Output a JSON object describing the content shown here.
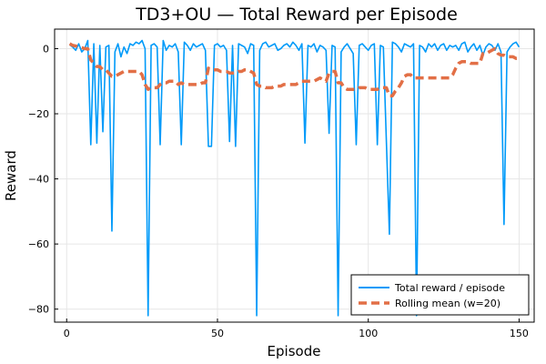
{
  "chart_data": {
    "type": "line",
    "title": "TD3+OU — Total Reward per Episode",
    "xlabel": "Episode",
    "ylabel": "Reward",
    "xlim": [
      -4,
      155
    ],
    "ylim": [
      -84,
      6
    ],
    "xticks": [
      0,
      50,
      100,
      150
    ],
    "yticks": [
      0,
      -20,
      -40,
      -60,
      -80
    ],
    "grid": true,
    "legend_position": "bottom-right",
    "series": [
      {
        "name": "Total reward / episode",
        "color": "#009af9",
        "style": "solid",
        "x": [
          1,
          2,
          3,
          4,
          5,
          6,
          7,
          8,
          9,
          10,
          11,
          12,
          13,
          14,
          15,
          16,
          17,
          18,
          19,
          20,
          21,
          22,
          23,
          24,
          25,
          26,
          27,
          28,
          29,
          30,
          31,
          32,
          33,
          34,
          35,
          36,
          37,
          38,
          39,
          40,
          41,
          42,
          43,
          44,
          45,
          46,
          47,
          48,
          49,
          50,
          51,
          52,
          53,
          54,
          55,
          56,
          57,
          58,
          59,
          60,
          61,
          62,
          63,
          64,
          65,
          66,
          67,
          68,
          69,
          70,
          71,
          72,
          73,
          74,
          75,
          76,
          77,
          78,
          79,
          80,
          81,
          82,
          83,
          84,
          85,
          86,
          87,
          88,
          89,
          90,
          91,
          92,
          93,
          94,
          95,
          96,
          97,
          98,
          99,
          100,
          101,
          102,
          103,
          104,
          105,
          106,
          107,
          108,
          109,
          110,
          111,
          112,
          113,
          114,
          115,
          116,
          117,
          118,
          119,
          120,
          121,
          122,
          123,
          124,
          125,
          126,
          127,
          128,
          129,
          130,
          131,
          132,
          133,
          134,
          135,
          136,
          137,
          138,
          139,
          140,
          141,
          142,
          143,
          144,
          145,
          146,
          147,
          148,
          149,
          150
        ],
        "y": [
          1.2,
          0.5,
          -0.5,
          1.5,
          -1.0,
          0.0,
          2.5,
          -29.5,
          1.5,
          -29,
          1.0,
          -25.5,
          0.5,
          1.0,
          -56,
          -1.0,
          1.5,
          -2.5,
          0.5,
          -1.5,
          1.5,
          1.0,
          2.0,
          1.5,
          2.5,
          0.0,
          -82,
          1.0,
          1.5,
          0.5,
          -29.5,
          2.5,
          -0.5,
          1.0,
          0.5,
          1.5,
          -1.0,
          -29.5,
          2.0,
          1.0,
          -0.5,
          1.5,
          0.5,
          1.0,
          1.5,
          -0.5,
          -30,
          -30,
          1.0,
          1.5,
          0.5,
          1.0,
          -0.5,
          -28.5,
          1.0,
          -30,
          1.5,
          1.0,
          0.5,
          -1.5,
          1.5,
          1.0,
          -82,
          -0.5,
          1.5,
          2.0,
          0.5,
          1.0,
          1.5,
          -0.5,
          0.0,
          1.0,
          1.5,
          0.5,
          2.0,
          1.0,
          -0.5,
          1.5,
          -29,
          1.0,
          0.5,
          1.5,
          -1.0,
          1.0,
          0.5,
          -0.5,
          -26,
          1.0,
          0.5,
          -82,
          -1.0,
          0.5,
          1.5,
          0.0,
          -1.5,
          -29.5,
          1.0,
          1.5,
          0.5,
          -0.5,
          1.0,
          1.5,
          -29.5,
          1.0,
          0.5,
          -28.5,
          -57,
          2.0,
          1.5,
          0.5,
          -1.0,
          1.5,
          1.0,
          0.5,
          1.5,
          -82,
          1.0,
          0.5,
          -1.0,
          1.5,
          0.5,
          1.5,
          -0.5,
          1.0,
          1.5,
          -0.5,
          1.0,
          0.5,
          1.0,
          -0.5,
          1.5,
          2.0,
          -1.0,
          0.5,
          1.5,
          -0.5,
          1.0,
          -2.0,
          0.5,
          1.5,
          1.0,
          -0.5,
          1.5,
          -1.0,
          -54,
          -1.0,
          0.5,
          1.5,
          2.0,
          0.5
        ]
      },
      {
        "name": "Rolling mean (w=20)",
        "color": "#e26f46",
        "style": "dashed",
        "x": [
          1,
          2,
          3,
          4,
          5,
          6,
          7,
          8,
          9,
          10,
          11,
          12,
          13,
          14,
          15,
          16,
          17,
          18,
          19,
          20,
          21,
          22,
          23,
          24,
          25,
          26,
          27,
          28,
          29,
          30,
          31,
          32,
          33,
          34,
          35,
          36,
          37,
          38,
          39,
          40,
          41,
          42,
          43,
          44,
          45,
          46,
          47,
          48,
          49,
          50,
          51,
          52,
          53,
          54,
          55,
          56,
          57,
          58,
          59,
          60,
          61,
          62,
          63,
          64,
          65,
          66,
          67,
          68,
          69,
          70,
          71,
          72,
          73,
          74,
          75,
          76,
          77,
          78,
          79,
          80,
          81,
          82,
          83,
          84,
          85,
          86,
          87,
          88,
          89,
          90,
          91,
          92,
          93,
          94,
          95,
          96,
          97,
          98,
          99,
          100,
          101,
          102,
          103,
          104,
          105,
          106,
          107,
          108,
          109,
          110,
          111,
          112,
          113,
          114,
          115,
          116,
          117,
          118,
          119,
          120,
          121,
          122,
          123,
          124,
          125,
          126,
          127,
          128,
          129,
          130,
          131,
          132,
          133,
          134,
          135,
          136,
          137,
          138,
          139,
          140,
          141,
          142,
          143,
          144,
          145,
          146,
          147,
          148,
          149,
          150
        ],
        "y": [
          1.5,
          1.0,
          0.8,
          0.5,
          0.3,
          0.0,
          0.0,
          -3.5,
          -4.5,
          -5.5,
          -5.5,
          -6.5,
          -6.5,
          -7.5,
          -8.5,
          -8.5,
          -8.0,
          -7.5,
          -7.0,
          -7.0,
          -7.0,
          -7.0,
          -7.0,
          -7.0,
          -8.0,
          -11.0,
          -12.5,
          -12.0,
          -12.0,
          -12.0,
          -11.0,
          -10.5,
          -10.5,
          -10.0,
          -10.0,
          -10.0,
          -11.0,
          -10.5,
          -11.0,
          -11.0,
          -11.0,
          -11.0,
          -11.0,
          -11.0,
          -10.5,
          -10.5,
          -6.0,
          -6.5,
          -6.5,
          -6.5,
          -7.0,
          -7.0,
          -7.0,
          -7.5,
          -7.5,
          -7.5,
          -7.0,
          -7.0,
          -6.5,
          -6.5,
          -7.0,
          -7.5,
          -11.0,
          -11.5,
          -11.5,
          -12.0,
          -12.0,
          -12.0,
          -11.5,
          -11.5,
          -11.5,
          -11.0,
          -11.0,
          -11.0,
          -11.0,
          -11.0,
          -10.5,
          -10.0,
          -10.0,
          -10.0,
          -10.0,
          -10.0,
          -9.5,
          -9.0,
          -9.5,
          -10.0,
          -7.5,
          -7.0,
          -7.0,
          -10.5,
          -10.5,
          -12.0,
          -12.5,
          -12.5,
          -12.5,
          -12.5,
          -12.0,
          -12.0,
          -12.0,
          -12.5,
          -12.5,
          -12.5,
          -12.5,
          -12.0,
          -12.0,
          -12.0,
          -14.5,
          -14.5,
          -13.0,
          -12.0,
          -10.5,
          -8.5,
          -8.0,
          -8.0,
          -9.0,
          -9.0,
          -9.0,
          -9.0,
          -9.0,
          -9.0,
          -9.0,
          -9.0,
          -9.0,
          -9.0,
          -9.0,
          -9.0,
          -9.0,
          -8.0,
          -6.0,
          -4.5,
          -4.0,
          -4.0,
          -4.0,
          -4.5,
          -4.5,
          -4.5,
          -4.5,
          -1.5,
          -1.5,
          -1.0,
          -0.5,
          0.0,
          -1.5,
          -2.0,
          -2.0,
          -2.5,
          -2.5,
          -2.5,
          -3.0,
          -3.0
        ]
      }
    ]
  }
}
